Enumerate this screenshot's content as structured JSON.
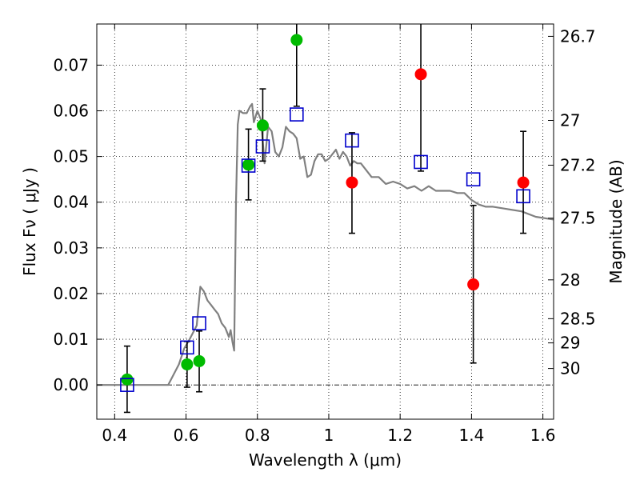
{
  "chart_data": {
    "type": "scatter",
    "xlabel": "Wavelength  λ (μm)",
    "ylabel": "Flux  Fν  ( μJy )",
    "ylabel_right": "Magnitude (AB)",
    "xlim": [
      0.35,
      1.63
    ],
    "ylim": [
      -0.0075,
      0.079
    ],
    "x_ticks": [
      {
        "value": 0.4,
        "label": "0.4"
      },
      {
        "value": 0.6,
        "label": "0.6"
      },
      {
        "value": 0.8,
        "label": "0.8"
      },
      {
        "value": 1.0,
        "label": "1"
      },
      {
        "value": 1.2,
        "label": "1.2"
      },
      {
        "value": 1.4,
        "label": "1.4"
      },
      {
        "value": 1.6,
        "label": "1.6"
      }
    ],
    "y_ticks": [
      {
        "value": 0.0,
        "label": "0.00"
      },
      {
        "value": 0.01,
        "label": "0.01"
      },
      {
        "value": 0.02,
        "label": "0.02"
      },
      {
        "value": 0.03,
        "label": "0.03"
      },
      {
        "value": 0.04,
        "label": "0.04"
      },
      {
        "value": 0.05,
        "label": "0.05"
      },
      {
        "value": 0.06,
        "label": "0.06"
      },
      {
        "value": 0.07,
        "label": "0.07"
      }
    ],
    "right_ticks": [
      {
        "label": "26.7",
        "flux": 0.0763
      },
      {
        "label": "27",
        "flux": 0.0579
      },
      {
        "label": "27.2",
        "flux": 0.0481
      },
      {
        "label": "27.5",
        "flux": 0.0365
      },
      {
        "label": "28",
        "flux": 0.023
      },
      {
        "label": "28.5",
        "flux": 0.0145
      },
      {
        "label": "29",
        "flux": 0.0092
      },
      {
        "label": "30",
        "flux": 0.0036
      }
    ],
    "grid": true,
    "model_curve": {
      "color": "#808080",
      "x": [
        0.35,
        0.55,
        0.56,
        0.58,
        0.595,
        0.61,
        0.63,
        0.64,
        0.65,
        0.66,
        0.67,
        0.68,
        0.69,
        0.7,
        0.71,
        0.72,
        0.725,
        0.73,
        0.735,
        0.74,
        0.745,
        0.75,
        0.76,
        0.77,
        0.78,
        0.785,
        0.79,
        0.8,
        0.81,
        0.82,
        0.83,
        0.84,
        0.85,
        0.86,
        0.87,
        0.88,
        0.89,
        0.9,
        0.91,
        0.92,
        0.93,
        0.94,
        0.95,
        0.96,
        0.97,
        0.98,
        0.99,
        1.0,
        1.01,
        1.02,
        1.03,
        1.04,
        1.05,
        1.06,
        1.07,
        1.08,
        1.09,
        1.1,
        1.12,
        1.14,
        1.16,
        1.18,
        1.2,
        1.22,
        1.24,
        1.26,
        1.28,
        1.3,
        1.32,
        1.34,
        1.36,
        1.38,
        1.4,
        1.42,
        1.44,
        1.46,
        1.5,
        1.54,
        1.58,
        1.63
      ],
      "y": [
        0.0,
        0.0,
        0.0015,
        0.0045,
        0.008,
        0.01,
        0.013,
        0.0215,
        0.0205,
        0.0185,
        0.0175,
        0.0165,
        0.0155,
        0.0135,
        0.0125,
        0.0105,
        0.012,
        0.0095,
        0.0075,
        0.04,
        0.057,
        0.06,
        0.0595,
        0.0595,
        0.061,
        0.0615,
        0.0575,
        0.06,
        0.058,
        0.0485,
        0.0565,
        0.0555,
        0.051,
        0.05,
        0.052,
        0.0565,
        0.0555,
        0.055,
        0.054,
        0.0495,
        0.05,
        0.0455,
        0.046,
        0.049,
        0.0505,
        0.0505,
        0.049,
        0.0495,
        0.0505,
        0.0515,
        0.0495,
        0.051,
        0.05,
        0.048,
        0.049,
        0.0485,
        0.0485,
        0.0475,
        0.0455,
        0.0455,
        0.044,
        0.0445,
        0.044,
        0.043,
        0.0435,
        0.0425,
        0.0435,
        0.0425,
        0.0425,
        0.0425,
        0.042,
        0.042,
        0.0405,
        0.0395,
        0.039,
        0.039,
        0.0385,
        0.038,
        0.0368,
        0.0362
      ]
    },
    "series": [
      {
        "marker": "circle",
        "color": "#00bb00",
        "points": [
          {
            "x": 0.435,
            "y": 0.0012
          },
          {
            "x": 0.603,
            "y": 0.0045
          },
          {
            "x": 0.637,
            "y": 0.0052
          },
          {
            "x": 0.775,
            "y": 0.0482
          },
          {
            "x": 0.815,
            "y": 0.0568
          },
          {
            "x": 0.91,
            "y": 0.0755
          }
        ]
      },
      {
        "marker": "circle",
        "color": "#ff0000",
        "points": [
          {
            "x": 1.065,
            "y": 0.0443
          },
          {
            "x": 1.258,
            "y": 0.068
          },
          {
            "x": 1.405,
            "y": 0.022
          },
          {
            "x": 1.545,
            "y": 0.0443
          }
        ]
      },
      {
        "marker": "square-open",
        "color": "#0000cc",
        "points": [
          {
            "x": 0.435,
            "y": 0.0
          },
          {
            "x": 0.603,
            "y": 0.0082
          },
          {
            "x": 0.637,
            "y": 0.0135
          },
          {
            "x": 0.775,
            "y": 0.048
          },
          {
            "x": 0.815,
            "y": 0.0522
          },
          {
            "x": 0.91,
            "y": 0.0592
          },
          {
            "x": 1.065,
            "y": 0.0535
          },
          {
            "x": 1.258,
            "y": 0.0488
          },
          {
            "x": 1.405,
            "y": 0.045
          },
          {
            "x": 1.545,
            "y": 0.0413
          }
        ]
      }
    ],
    "error_bars": [
      {
        "x": 0.435,
        "low": -0.006,
        "high": 0.0085
      },
      {
        "x": 0.603,
        "low": -0.0005,
        "high": 0.0095
      },
      {
        "x": 0.637,
        "low": -0.0015,
        "high": 0.0118
      },
      {
        "x": 0.775,
        "low": 0.0405,
        "high": 0.056
      },
      {
        "x": 0.815,
        "low": 0.049,
        "high": 0.0648
      },
      {
        "x": 0.91,
        "low": 0.061,
        "high": 0.079
      },
      {
        "x": 1.065,
        "low": 0.0332,
        "high": 0.0552
      },
      {
        "x": 1.258,
        "low": 0.0468,
        "high": 0.079
      },
      {
        "x": 1.405,
        "low": 0.0048,
        "high": 0.0393
      },
      {
        "x": 1.545,
        "low": 0.0332,
        "high": 0.0555
      }
    ]
  }
}
